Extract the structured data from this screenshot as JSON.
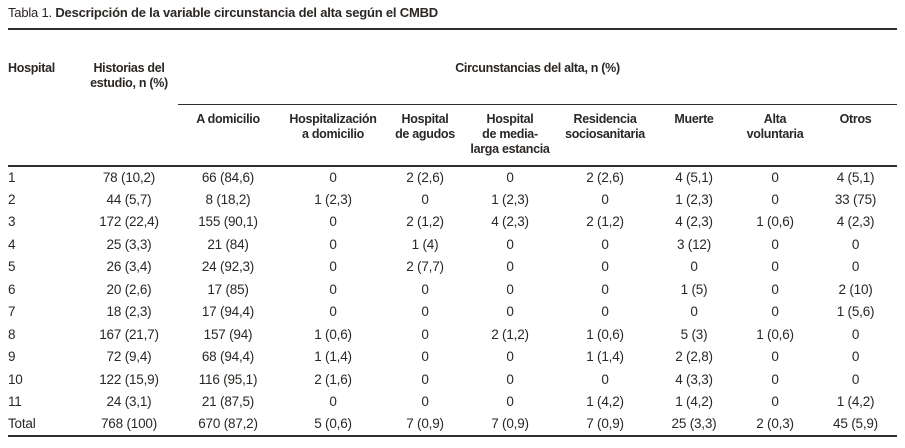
{
  "title": {
    "label": "Tabla 1.",
    "text": "Descripción de la variable circunstancia del alta según el CMBD"
  },
  "table": {
    "col1_header": "Hospital",
    "col2_header": "Historias del\nestudio, n (%)",
    "span_header": "Circunstancias del alta, n (%)",
    "sub_headers": [
      "A domicilio",
      "Hospitalización\na domicilio",
      "Hospital\nde agudos",
      "Hospital\nde media-\nlarga estancia",
      "Residencia\nsociosanitaria",
      "Muerte",
      "Alta\nvoluntaria",
      "Otros"
    ],
    "rows": [
      [
        "1",
        "78 (10,2)",
        "66 (84,6)",
        "0",
        "2 (2,6)",
        "0",
        "2 (2,6)",
        "4 (5,1)",
        "0",
        "4 (5,1)"
      ],
      [
        "2",
        "44 (5,7)",
        "8 (18,2)",
        "1 (2,3)",
        "0",
        "1 (2,3)",
        "0",
        "1 (2,3)",
        "0",
        "33 (75)"
      ],
      [
        "3",
        "172 (22,4)",
        "155 (90,1)",
        "0",
        "2 (1,2)",
        "4 (2,3)",
        "2 (1,2)",
        "4 (2,3)",
        "1 (0,6)",
        "4 (2,3)"
      ],
      [
        "4",
        "25 (3,3)",
        "21 (84)",
        "0",
        "1 (4)",
        "0",
        "0",
        "3 (12)",
        "0",
        "0"
      ],
      [
        "5",
        "26 (3,4)",
        "24 (92,3)",
        "0",
        "2 (7,7)",
        "0",
        "0",
        "0",
        "0",
        "0"
      ],
      [
        "6",
        "20 (2,6)",
        "17 (85)",
        "0",
        "0",
        "0",
        "0",
        "1 (5)",
        "0",
        "2 (10)"
      ],
      [
        "7",
        "18 (2,3)",
        "17 (94,4)",
        "0",
        "0",
        "0",
        "0",
        "0",
        "0",
        "1 (5,6)"
      ],
      [
        "8",
        "167 (21,7)",
        "157 (94)",
        "1 (0,6)",
        "0",
        "2 (1,2)",
        "1 (0,6)",
        "5 (3)",
        "1 (0,6)",
        "0"
      ],
      [
        "9",
        "72 (9,4)",
        "68 (94,4)",
        "1 (1,4)",
        "0",
        "0",
        "1 (1,4)",
        "2 (2,8)",
        "0",
        "0"
      ],
      [
        "10",
        "122 (15,9)",
        "116 (95,1)",
        "2 (1,6)",
        "0",
        "0",
        "0",
        "4 (3,3)",
        "0",
        "0"
      ],
      [
        "11",
        "24 (3,1)",
        "21 (87,5)",
        "0",
        "0",
        "0",
        "1 (4,2)",
        "1 (4,2)",
        "0",
        "1 (4,2)"
      ],
      [
        "Total",
        "768 (100)",
        "670 (87,2)",
        "5 (0,6)",
        "7 (0,9)",
        "7 (0,9)",
        "7 (0,9)",
        "25 (3,3)",
        "2 (0,3)",
        "45 (5,9)"
      ]
    ]
  }
}
